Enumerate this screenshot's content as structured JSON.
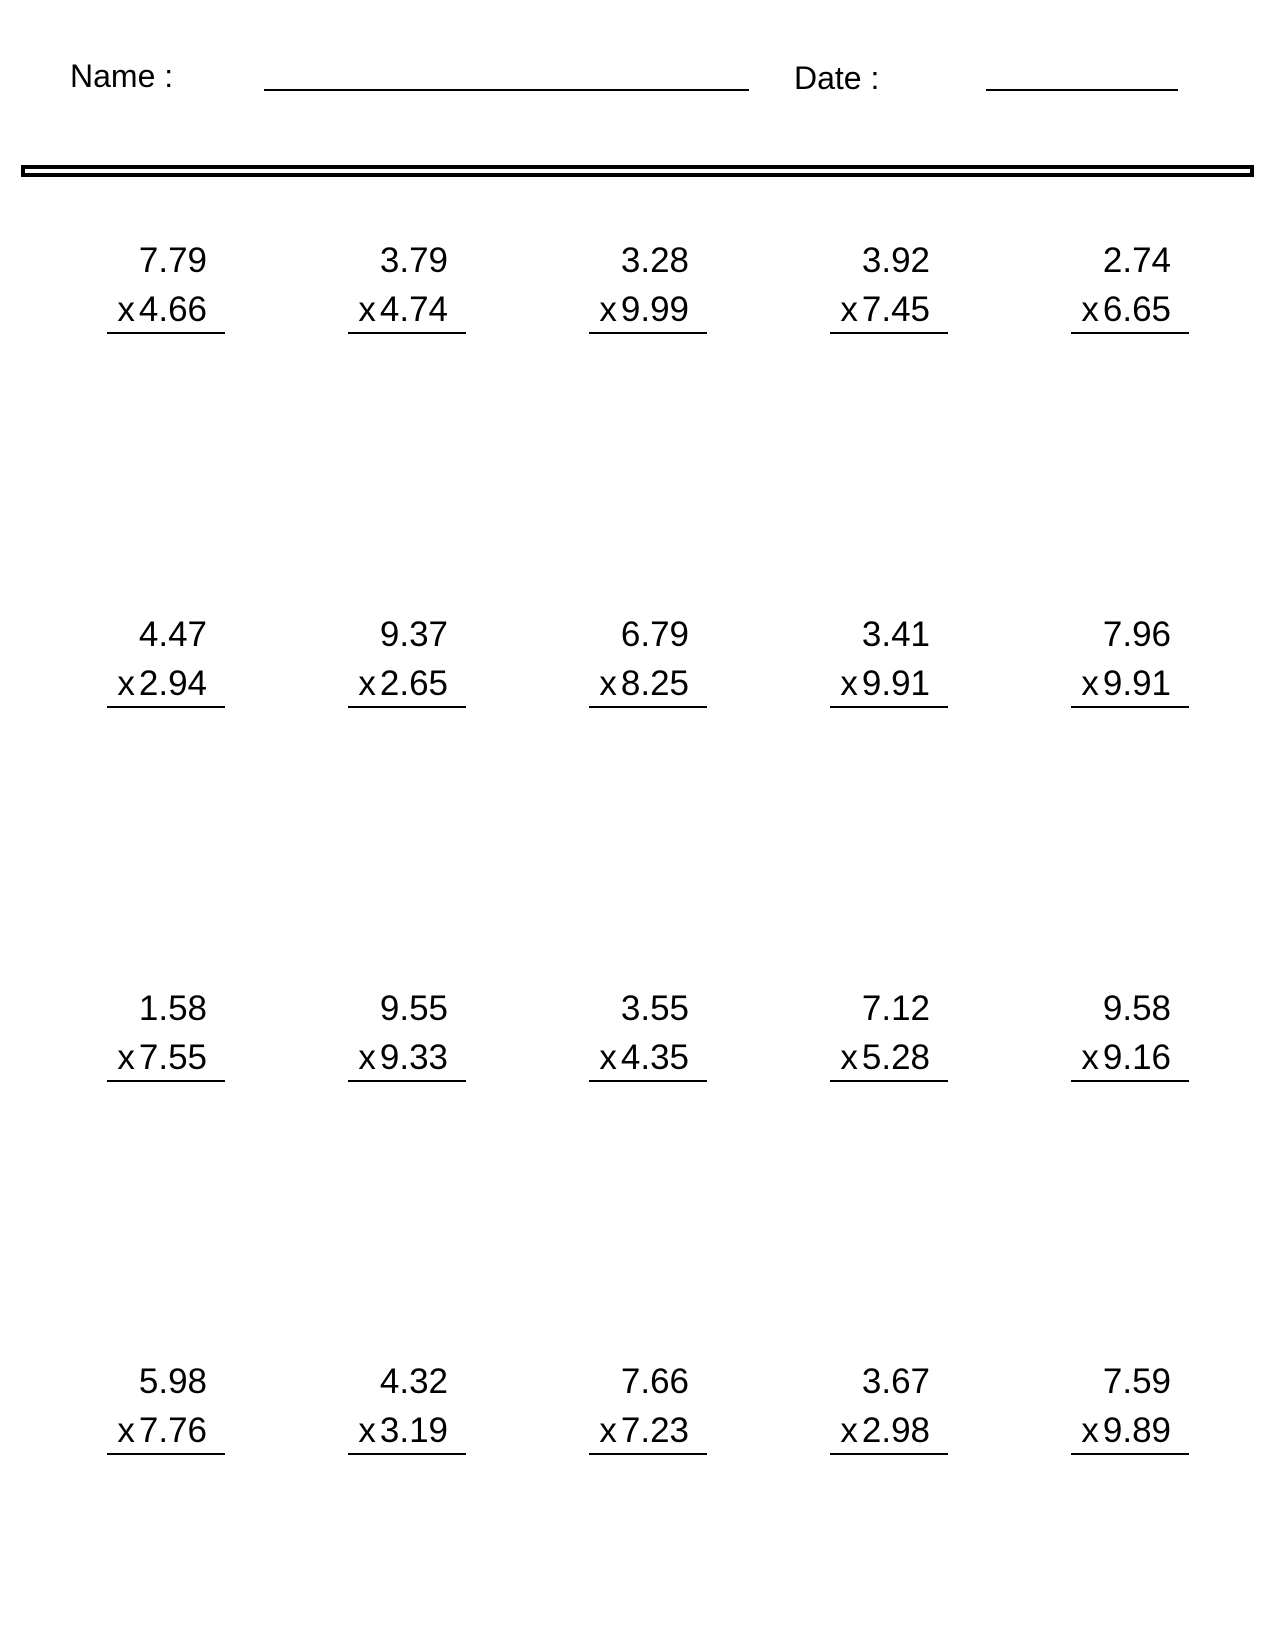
{
  "header": {
    "name_label": "Name :",
    "date_label": "Date :"
  },
  "operator": "x",
  "problems": [
    [
      {
        "a": "7.79",
        "b": "4.66"
      },
      {
        "a": "3.79",
        "b": "4.74"
      },
      {
        "a": "3.28",
        "b": "9.99"
      },
      {
        "a": "3.92",
        "b": "7.45"
      },
      {
        "a": "2.74",
        "b": "6.65"
      }
    ],
    [
      {
        "a": "4.47",
        "b": "2.94"
      },
      {
        "a": "9.37",
        "b": "2.65"
      },
      {
        "a": "6.79",
        "b": "8.25"
      },
      {
        "a": "3.41",
        "b": "9.91"
      },
      {
        "a": "7.96",
        "b": "9.91"
      }
    ],
    [
      {
        "a": "1.58",
        "b": "7.55"
      },
      {
        "a": "9.55",
        "b": "9.33"
      },
      {
        "a": "3.55",
        "b": "4.35"
      },
      {
        "a": "7.12",
        "b": "5.28"
      },
      {
        "a": "9.58",
        "b": "9.16"
      }
    ],
    [
      {
        "a": "5.98",
        "b": "7.76"
      },
      {
        "a": "4.32",
        "b": "3.19"
      },
      {
        "a": "7.66",
        "b": "7.23"
      },
      {
        "a": "3.67",
        "b": "2.98"
      },
      {
        "a": "7.59",
        "b": "9.89"
      }
    ]
  ]
}
